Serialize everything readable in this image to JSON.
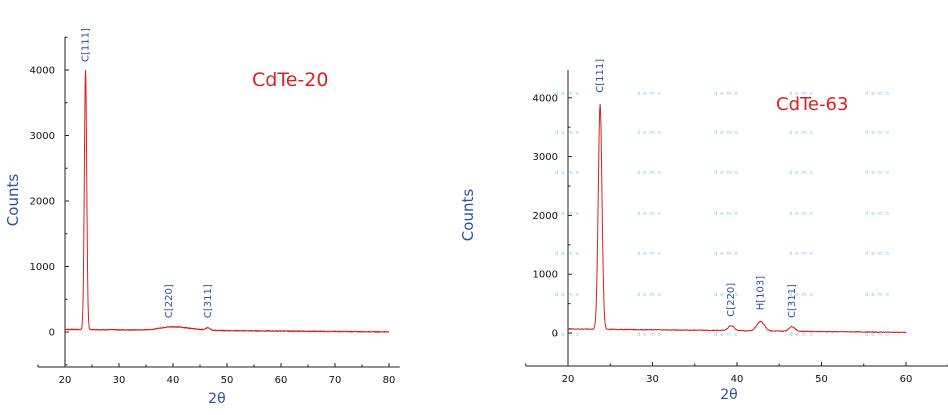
{
  "chart_data": [
    {
      "type": "line",
      "title": "CdTe-20",
      "xlabel": "2θ",
      "ylabel": "Counts",
      "xlim": [
        15,
        82
      ],
      "ylim": [
        -600,
        4600
      ],
      "xticks": [
        20,
        30,
        40,
        50,
        60,
        70,
        80
      ],
      "yticks": [
        0,
        1000,
        2000,
        3000,
        4000
      ],
      "series_color": "#d81e1e",
      "title_color": "#e02020",
      "label_color": "#2f4fa0",
      "annotations": [
        {
          "label": "C[111]",
          "x": 23.8,
          "y": 4000
        },
        {
          "label": "C[220]",
          "x": 39.3,
          "y": 90
        },
        {
          "label": "C[311]",
          "x": 46.5,
          "y": 90
        }
      ],
      "peaks": [
        {
          "x": 23.8,
          "height": 3950,
          "width": 0.22
        },
        {
          "x": 39.4,
          "height": 45,
          "width": 2.0
        },
        {
          "x": 42.8,
          "height": 25,
          "width": 2.0
        },
        {
          "x": 46.5,
          "height": 40,
          "width": 0.4
        }
      ],
      "baseline": {
        "x_start": 20,
        "x_end": 80,
        "y_start": 40,
        "y_end": 2
      },
      "grid": false
    },
    {
      "type": "line",
      "title": "CdTe-63",
      "xlabel": "2θ",
      "ylabel": "Counts",
      "xlim": [
        15,
        65
      ],
      "ylim": [
        -300,
        4500
      ],
      "xticks": [
        20,
        30,
        40,
        50,
        60
      ],
      "yticks": [
        0,
        1000,
        2000,
        3000,
        4000
      ],
      "series_color": "#d81e1e",
      "title_color": "#e02020",
      "label_color": "#2f4fa0",
      "annotations": [
        {
          "label": "C[111]",
          "x": 23.8,
          "y": 3950
        },
        {
          "label": "C[220]",
          "x": 39.3,
          "y": 140
        },
        {
          "label": "H[103]",
          "x": 42.8,
          "y": 250
        },
        {
          "label": "C[311]",
          "x": 46.5,
          "y": 120
        }
      ],
      "peaks": [
        {
          "x": 23.8,
          "height": 3830,
          "width": 0.22
        },
        {
          "x": 39.3,
          "height": 85,
          "width": 0.35
        },
        {
          "x": 42.8,
          "height": 160,
          "width": 0.45
        },
        {
          "x": 46.5,
          "height": 80,
          "width": 0.35
        }
      ],
      "baseline": {
        "x_start": 20,
        "x_end": 60,
        "y_start": 70,
        "y_end": 10
      },
      "grid": false,
      "watermark": {
        "text": "d e m o",
        "color": "#8fd3e6"
      }
    }
  ]
}
